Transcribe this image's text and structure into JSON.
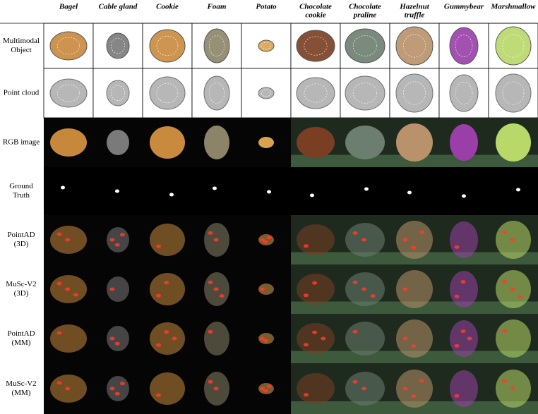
{
  "columns": [
    [
      "Bagel"
    ],
    [
      "Cable gland"
    ],
    [
      "Cookie"
    ],
    [
      "Foam"
    ],
    [
      "Potato"
    ],
    [
      "Chocolate",
      "cookie"
    ],
    [
      "Chocolate",
      "praline"
    ],
    [
      "Hazelnut",
      "truffle"
    ],
    [
      "Gummybear"
    ],
    [
      "Marshmallow"
    ]
  ],
  "rows": [
    {
      "label": [
        "Multimodal",
        "Object"
      ]
    },
    {
      "label": [
        "Point cloud"
      ]
    },
    {
      "label": [
        "RGB image"
      ]
    },
    {
      "label": [
        "Ground",
        "Truth"
      ]
    },
    {
      "label": [
        "PointAD",
        "(3D)"
      ]
    },
    {
      "label": [
        "MuSc-V2",
        "(3D)"
      ]
    },
    {
      "label": [
        "PointAD",
        "(MM)"
      ]
    },
    {
      "label": [
        "MuSc-V2",
        "(MM)"
      ]
    }
  ]
}
